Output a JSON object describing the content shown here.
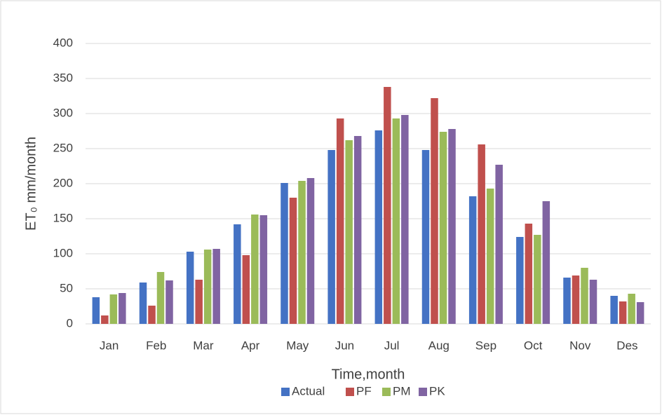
{
  "chart_data": {
    "type": "bar",
    "x_label": "Time,month",
    "y_label": "ET₀ mm/month",
    "categories": [
      "Jan",
      "Feb",
      "Mar",
      "Apr",
      "May",
      "Jun",
      "Jul",
      "Aug",
      "Sep",
      "Oct",
      "Nov",
      "Des"
    ],
    "series": [
      {
        "name": "Actual",
        "color": "#4472c4",
        "values": [
          38,
          59,
          103,
          142,
          201,
          248,
          276,
          248,
          182,
          124,
          66,
          40
        ]
      },
      {
        "name": "PF",
        "color": "#c0504d",
        "values": [
          12,
          26,
          63,
          98,
          180,
          293,
          338,
          322,
          256,
          143,
          69,
          32
        ]
      },
      {
        "name": "PM",
        "color": "#9bbb59",
        "values": [
          42,
          74,
          106,
          156,
          204,
          262,
          293,
          274,
          193,
          127,
          80,
          43
        ]
      },
      {
        "name": "PK",
        "color": "#8064a2",
        "values": [
          44,
          62,
          107,
          155,
          208,
          268,
          298,
          278,
          227,
          175,
          63,
          31
        ]
      }
    ],
    "ylim": [
      0,
      400
    ],
    "yticks": [
      0,
      50,
      100,
      150,
      200,
      250,
      300,
      350,
      400
    ],
    "grid": true,
    "legend": "bottom"
  }
}
